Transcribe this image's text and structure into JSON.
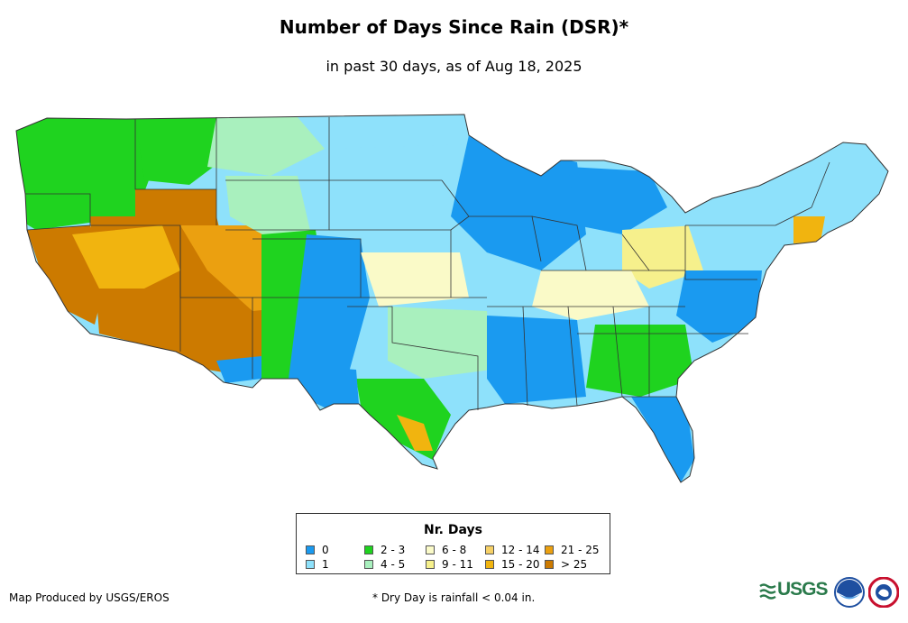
{
  "title": "Number of Days Since Rain (DSR)*",
  "subtitle": "in past 30 days, as of Aug 18, 2025",
  "legend": {
    "title": "Nr. Days",
    "items": [
      {
        "label": "0",
        "color": "#1a9af0"
      },
      {
        "label": "1",
        "color": "#8ee1fb"
      },
      {
        "label": "2 - 3",
        "color": "#1fd31f"
      },
      {
        "label": "4 - 5",
        "color": "#a9f0be"
      },
      {
        "label": "6 - 8",
        "color": "#fafac8"
      },
      {
        "label": "9 - 11",
        "color": "#f6f08c"
      },
      {
        "label": "12 - 14",
        "color": "#f6d066"
      },
      {
        "label": "15 - 20",
        "color": "#f1b40f"
      },
      {
        "label": "21 - 25",
        "color": "#eba010"
      },
      {
        "label": "> 25",
        "color": "#cc7a00"
      }
    ]
  },
  "footer": {
    "credit": "Map Produced by USGS/EROS",
    "note": "* Dry Day is rainfall < 0.04 in."
  },
  "logos": {
    "usgs_text": "USGS",
    "usgs_color": "#2a7a4b",
    "noaa_color": "#1e4fa0",
    "nws_color": "#c8102e"
  }
}
